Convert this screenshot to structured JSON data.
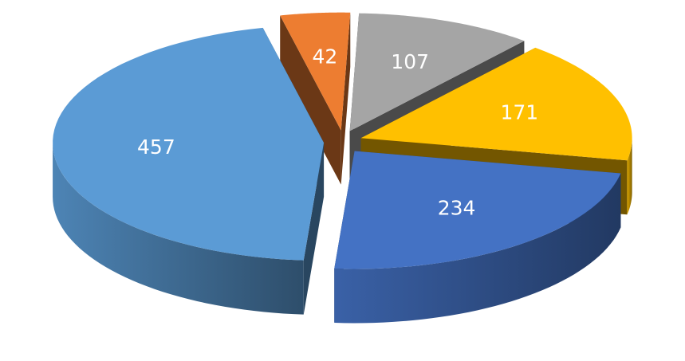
{
  "chart_data": {
    "type": "pie",
    "values": [
      42,
      107,
      171,
      234,
      457
    ],
    "colors": [
      "#ed7d31",
      "#a5a5a5",
      "#ffc000",
      "#4472c4",
      "#5b9bd5"
    ]
  }
}
